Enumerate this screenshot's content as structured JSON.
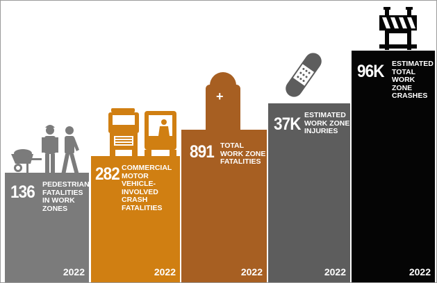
{
  "stats": [
    {
      "number": "136",
      "lines": [
        "PEDESTRIAN",
        "FATALITIES",
        "IN WORK",
        "ZONES"
      ],
      "year": "2022",
      "color": "#7b7b7b",
      "icon": "worker-wheelbarrow-icon"
    },
    {
      "number": "282",
      "lines": [
        "COMMERCIAL",
        "MOTOR VEHICLE-",
        "INVOLVED CRASH",
        "FATALITIES"
      ],
      "year": "2022",
      "color": "#d07f12",
      "icon": "truck-icon"
    },
    {
      "number": "891",
      "lines": [
        "TOTAL",
        "WORK ZONE",
        "FATALITIES"
      ],
      "year": "2022",
      "color": "#a75f22",
      "icon": "tombstone-icon"
    },
    {
      "number": "37K",
      "lines": [
        "ESTIMATED",
        "WORK ZONE",
        "INJURIES"
      ],
      "year": "2022",
      "color": "#5d5d5d",
      "icon": "bandage-icon"
    },
    {
      "number": "96K",
      "lines": [
        "ESTIMATED",
        "TOTAL WORK",
        "ZONE",
        "CRASHES"
      ],
      "year": "2022",
      "color": "#050505",
      "icon": "barricade-icon"
    }
  ]
}
